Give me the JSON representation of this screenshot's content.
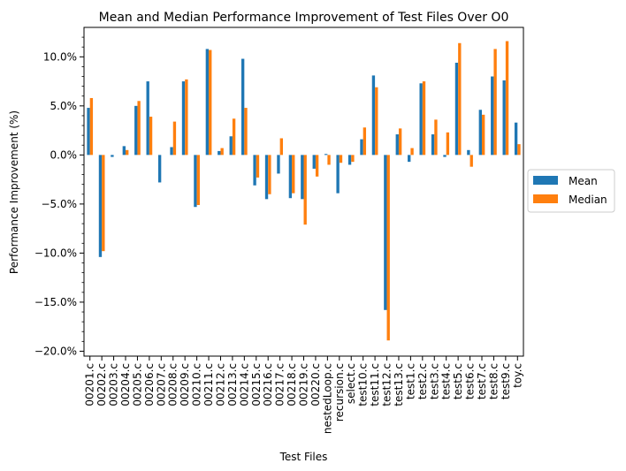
{
  "chart_data": {
    "type": "bar",
    "title": "Mean and Median Performance Improvement of Test Files Over O0",
    "xlabel": "Test Files",
    "ylabel": "Performance Improvement (%)",
    "ylim": [
      -20.5,
      13.0
    ],
    "yticks": [
      -20,
      -15,
      -10,
      -5,
      0,
      5,
      10
    ],
    "ytick_labels": [
      "−20.0%",
      "−15.0%",
      "−10.0%",
      "−5.0%",
      "0.0%",
      "5.0%",
      "10.0%"
    ],
    "legend_position": "right",
    "grid": false,
    "categories": [
      "00201.c",
      "00202.c",
      "00203.c",
      "00204.c",
      "00205.c",
      "00206.c",
      "00207.c",
      "00208.c",
      "00209.c",
      "00210.c",
      "00211.c",
      "00212.c",
      "00213.c",
      "00214.c",
      "00215.c",
      "00216.c",
      "00217.c",
      "00218.c",
      "00219.c",
      "00220.c",
      "nestedLoop.c",
      "recursion.c",
      "select.c",
      "test10.c",
      "test11.c",
      "test12.c",
      "test13.c",
      "test1.c",
      "test2.c",
      "test3.c",
      "test4.c",
      "test5.c",
      "test6.c",
      "test7.c",
      "test8.c",
      "test9.c",
      "toy.c"
    ],
    "series": [
      {
        "name": "Mean",
        "color": "#1f77b4",
        "values": [
          4.8,
          -10.4,
          -0.2,
          0.9,
          5.0,
          7.5,
          -2.8,
          0.8,
          7.5,
          -5.3,
          10.8,
          0.4,
          1.9,
          9.8,
          -3.1,
          -4.5,
          -1.9,
          -4.4,
          -4.5,
          -1.4,
          0.1,
          -3.9,
          -1.0,
          1.6,
          8.1,
          -15.8,
          2.1,
          -0.7,
          7.3,
          2.1,
          -0.2,
          9.4,
          0.5,
          4.6,
          8.0,
          7.6,
          3.3
        ]
      },
      {
        "name": "Median",
        "color": "#ff7f0e",
        "values": [
          5.8,
          -9.8,
          0.0,
          0.5,
          5.5,
          3.9,
          0.0,
          3.4,
          7.7,
          -5.1,
          10.7,
          0.7,
          3.7,
          4.8,
          -2.3,
          -4.0,
          1.7,
          -3.9,
          -7.1,
          -2.2,
          -1.0,
          -0.8,
          -0.7,
          2.8,
          6.9,
          -18.9,
          2.7,
          0.7,
          7.5,
          3.6,
          2.3,
          11.4,
          -1.2,
          4.1,
          10.8,
          11.6,
          1.1
        ]
      }
    ]
  }
}
